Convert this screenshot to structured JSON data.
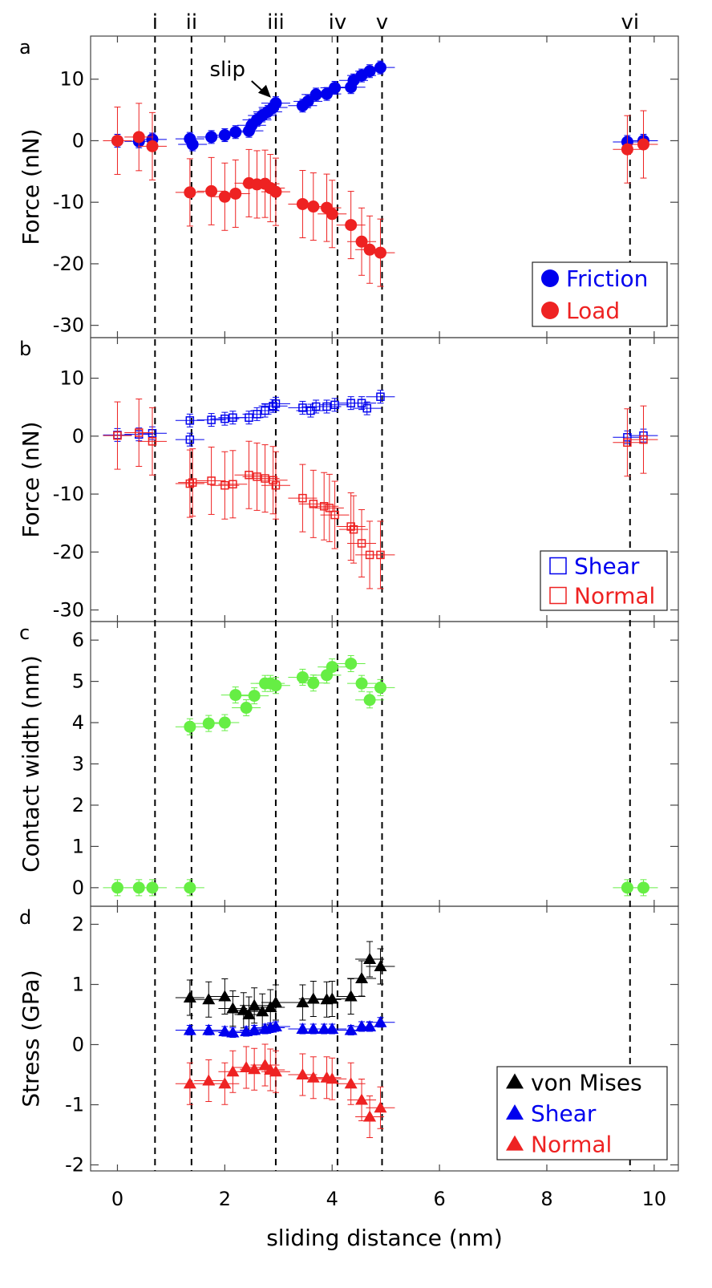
{
  "chart_data": [
    {
      "panel": "a",
      "type": "scatter",
      "ylabel": "Force (nN)",
      "ylim": [
        -32,
        17
      ],
      "yticks": [
        10,
        0,
        -10,
        -20,
        -30
      ],
      "ytick_labels": [
        "10",
        "0",
        "-10",
        "-20",
        "-30"
      ],
      "legend_placement": "bottom-right",
      "annotation": "slip",
      "series": [
        {
          "name": "Friction",
          "marker": "filled-circle",
          "color": "#0000ee",
          "x": [
            0,
            0.4,
            0.65,
            1.35,
            1.4,
            1.75,
            2.0,
            2.2,
            2.45,
            2.5,
            2.6,
            2.7,
            2.8,
            2.9,
            2.95,
            3.45,
            3.55,
            3.7,
            3.9,
            4.05,
            4.35,
            4.4,
            4.55,
            4.7,
            4.9,
            9.5,
            9.8
          ],
          "y": [
            0,
            -0.1,
            0.2,
            0.3,
            -0.6,
            0.6,
            0.9,
            1.4,
            1.6,
            2.5,
            3.4,
            4.1,
            4.7,
            5.4,
            6.1,
            5.7,
            6.4,
            7.5,
            7.6,
            8.6,
            8.7,
            9.8,
            10.6,
            11.3,
            11.9,
            -0.2,
            0
          ]
        },
        {
          "name": "Load",
          "marker": "filled-circle",
          "color": "#ee2222",
          "x": [
            0,
            0.4,
            0.65,
            1.35,
            1.75,
            2.0,
            2.2,
            2.45,
            2.6,
            2.75,
            2.85,
            2.95,
            3.45,
            3.65,
            3.9,
            4.0,
            4.35,
            4.55,
            4.7,
            4.9,
            9.5,
            9.8
          ],
          "y": [
            0,
            0.6,
            -0.9,
            -8.4,
            -8.2,
            -9.1,
            -8.6,
            -6.9,
            -7.1,
            -7.0,
            -7.7,
            -8.3,
            -10.3,
            -10.7,
            -10.9,
            -11.9,
            -13.7,
            -16.4,
            -17.7,
            -18.2,
            -1.4,
            -0.6
          ]
        }
      ]
    },
    {
      "panel": "b",
      "type": "scatter",
      "ylabel": "Force (nN)",
      "ylim": [
        -32,
        17
      ],
      "yticks": [
        10,
        0,
        -10,
        -20,
        -30
      ],
      "ytick_labels": [
        "10",
        "0",
        "-10",
        "-20",
        "-30"
      ],
      "legend_placement": "bottom-right",
      "series": [
        {
          "name": "Shear",
          "marker": "open-square",
          "color": "#0000ee",
          "x": [
            0,
            0.4,
            0.65,
            1.35,
            1.35,
            1.75,
            2.0,
            2.15,
            2.45,
            2.6,
            2.75,
            2.9,
            2.95,
            3.45,
            3.6,
            3.7,
            3.9,
            4.05,
            4.35,
            4.55,
            4.65,
            4.9,
            9.5,
            9.8
          ],
          "y": [
            0.2,
            0.3,
            0.5,
            2.7,
            -0.6,
            2.8,
            3.0,
            3.2,
            3.2,
            3.8,
            4.4,
            5.2,
            5.6,
            4.9,
            4.4,
            5.1,
            5.1,
            5.4,
            5.7,
            5.7,
            4.8,
            6.8,
            -0.2,
            0.1
          ]
        },
        {
          "name": "Normal",
          "marker": "open-square",
          "color": "#ee2222",
          "x": [
            0,
            0.4,
            0.65,
            1.35,
            1.4,
            1.75,
            2.0,
            2.15,
            2.45,
            2.6,
            2.75,
            2.9,
            2.95,
            3.45,
            3.65,
            3.85,
            3.95,
            4.05,
            4.35,
            4.4,
            4.55,
            4.7,
            4.9,
            9.5,
            9.8
          ],
          "y": [
            0.1,
            0.6,
            -0.9,
            -8.2,
            -8.0,
            -7.7,
            -8.5,
            -8.3,
            -6.7,
            -7.0,
            -7.3,
            -7.6,
            -8.5,
            -10.7,
            -11.7,
            -12.1,
            -12.4,
            -13.6,
            -15.6,
            -16.1,
            -18.5,
            -20.5,
            -20.5,
            -1.1,
            -0.6
          ]
        }
      ]
    },
    {
      "panel": "c",
      "type": "scatter",
      "ylabel": "Contact width (nm)",
      "ylim": [
        -0.45,
        6.45
      ],
      "yticks": [
        0,
        1,
        2,
        3,
        4,
        5,
        6
      ],
      "ytick_labels": [
        "0",
        "1",
        "2",
        "3",
        "4",
        "5",
        "6"
      ],
      "series": [
        {
          "name": "Contact width",
          "marker": "filled-circle",
          "color": "#66ee44",
          "x": [
            0,
            0.4,
            0.65,
            1.35,
            1.35,
            1.7,
            2.0,
            2.2,
            2.4,
            2.55,
            2.75,
            2.85,
            2.95,
            3.45,
            3.65,
            3.9,
            4.0,
            4.35,
            4.55,
            4.7,
            4.9,
            9.5,
            9.8
          ],
          "y": [
            0,
            0,
            0,
            0,
            3.9,
            3.98,
            4.0,
            4.67,
            4.36,
            4.65,
            4.95,
            4.95,
            4.9,
            5.1,
            4.96,
            5.15,
            5.35,
            5.43,
            4.95,
            4.55,
            4.85,
            0,
            0
          ]
        }
      ]
    },
    {
      "panel": "d",
      "type": "scatter",
      "ylabel": "Stress (GPa)",
      "xlabel": "sliding distance (nm)",
      "ylim": [
        -2.1,
        2.3
      ],
      "yticks": [
        2,
        1,
        0,
        -1,
        -2
      ],
      "ytick_labels": [
        "2",
        "1",
        "0",
        "-1",
        "-2"
      ],
      "legend_placement": "bottom-right",
      "series": [
        {
          "name": "von Mises",
          "marker": "filled-triangle",
          "color": "#000000",
          "x": [
            1.35,
            1.7,
            2.0,
            2.15,
            2.35,
            2.45,
            2.55,
            2.7,
            2.85,
            2.95,
            3.45,
            3.65,
            3.9,
            4.0,
            4.35,
            4.55,
            4.7,
            4.9
          ],
          "y": [
            0.78,
            0.75,
            0.8,
            0.6,
            0.57,
            0.5,
            0.65,
            0.55,
            0.62,
            0.7,
            0.7,
            0.76,
            0.75,
            0.76,
            0.8,
            1.1,
            1.42,
            1.3
          ]
        },
        {
          "name": "Shear",
          "marker": "filled-triangle",
          "color": "#0000ee",
          "x": [
            1.35,
            1.7,
            2.0,
            2.15,
            2.4,
            2.55,
            2.75,
            2.85,
            2.95,
            3.45,
            3.65,
            3.85,
            4.0,
            4.35,
            4.55,
            4.7,
            4.9
          ],
          "y": [
            0.24,
            0.24,
            0.22,
            0.2,
            0.22,
            0.24,
            0.26,
            0.28,
            0.3,
            0.26,
            0.26,
            0.26,
            0.26,
            0.24,
            0.3,
            0.3,
            0.37
          ]
        },
        {
          "name": "Normal",
          "marker": "filled-triangle",
          "color": "#ee2222",
          "x": [
            1.35,
            1.7,
            2.0,
            2.15,
            2.4,
            2.55,
            2.75,
            2.85,
            2.95,
            3.45,
            3.65,
            3.9,
            4.0,
            4.35,
            4.55,
            4.7,
            4.9
          ],
          "y": [
            -0.65,
            -0.6,
            -0.65,
            -0.45,
            -0.38,
            -0.41,
            -0.34,
            -0.42,
            -0.45,
            -0.5,
            -0.55,
            -0.55,
            -0.57,
            -0.65,
            -0.92,
            -1.2,
            -1.05
          ]
        }
      ]
    }
  ],
  "x_axis": {
    "label": "sliding distance (nm)",
    "xlim": [
      -0.5,
      10.45
    ],
    "ticks": [
      0,
      2,
      4,
      6,
      8,
      10
    ],
    "tick_labels": [
      "0",
      "2",
      "4",
      "6",
      "8",
      "10"
    ]
  },
  "region_markers": [
    {
      "label": "i",
      "x": 0.7
    },
    {
      "label": "ii",
      "x": 1.38
    },
    {
      "label": "iii",
      "x": 2.95
    },
    {
      "label": "iv",
      "x": 4.1
    },
    {
      "label": "v",
      "x": 4.93
    },
    {
      "label": "vi",
      "x": 9.55
    }
  ]
}
